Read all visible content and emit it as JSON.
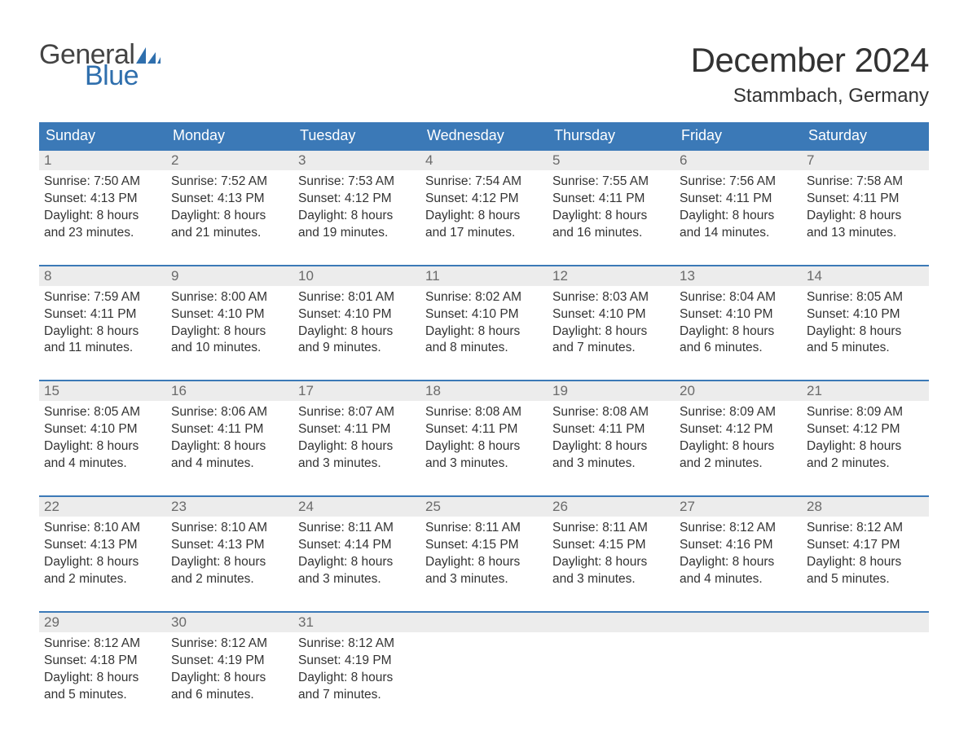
{
  "logo": {
    "text_top": "General",
    "text_bottom": "Blue",
    "top_color": "#444444",
    "bottom_color": "#2f6fad",
    "flag_color": "#2f6fad"
  },
  "title": "December 2024",
  "location": "Stammbach, Germany",
  "colors": {
    "header_bg": "#3b79b7",
    "header_text": "#ffffff",
    "daynum_bg": "#ececec",
    "daynum_text": "#6a6a6a",
    "body_text": "#333333",
    "week_border": "#3b79b7",
    "page_bg": "#ffffff"
  },
  "fonts": {
    "title_size_pt": 32,
    "location_size_pt": 18,
    "weekday_size_pt": 14,
    "daynum_size_pt": 13,
    "body_size_pt": 12
  },
  "weekdays": [
    "Sunday",
    "Monday",
    "Tuesday",
    "Wednesday",
    "Thursday",
    "Friday",
    "Saturday"
  ],
  "weeks": [
    [
      {
        "n": "1",
        "sunrise": "Sunrise: 7:50 AM",
        "sunset": "Sunset: 4:13 PM",
        "d1": "Daylight: 8 hours",
        "d2": "and 23 minutes."
      },
      {
        "n": "2",
        "sunrise": "Sunrise: 7:52 AM",
        "sunset": "Sunset: 4:13 PM",
        "d1": "Daylight: 8 hours",
        "d2": "and 21 minutes."
      },
      {
        "n": "3",
        "sunrise": "Sunrise: 7:53 AM",
        "sunset": "Sunset: 4:12 PM",
        "d1": "Daylight: 8 hours",
        "d2": "and 19 minutes."
      },
      {
        "n": "4",
        "sunrise": "Sunrise: 7:54 AM",
        "sunset": "Sunset: 4:12 PM",
        "d1": "Daylight: 8 hours",
        "d2": "and 17 minutes."
      },
      {
        "n": "5",
        "sunrise": "Sunrise: 7:55 AM",
        "sunset": "Sunset: 4:11 PM",
        "d1": "Daylight: 8 hours",
        "d2": "and 16 minutes."
      },
      {
        "n": "6",
        "sunrise": "Sunrise: 7:56 AM",
        "sunset": "Sunset: 4:11 PM",
        "d1": "Daylight: 8 hours",
        "d2": "and 14 minutes."
      },
      {
        "n": "7",
        "sunrise": "Sunrise: 7:58 AM",
        "sunset": "Sunset: 4:11 PM",
        "d1": "Daylight: 8 hours",
        "d2": "and 13 minutes."
      }
    ],
    [
      {
        "n": "8",
        "sunrise": "Sunrise: 7:59 AM",
        "sunset": "Sunset: 4:11 PM",
        "d1": "Daylight: 8 hours",
        "d2": "and 11 minutes."
      },
      {
        "n": "9",
        "sunrise": "Sunrise: 8:00 AM",
        "sunset": "Sunset: 4:10 PM",
        "d1": "Daylight: 8 hours",
        "d2": "and 10 minutes."
      },
      {
        "n": "10",
        "sunrise": "Sunrise: 8:01 AM",
        "sunset": "Sunset: 4:10 PM",
        "d1": "Daylight: 8 hours",
        "d2": "and 9 minutes."
      },
      {
        "n": "11",
        "sunrise": "Sunrise: 8:02 AM",
        "sunset": "Sunset: 4:10 PM",
        "d1": "Daylight: 8 hours",
        "d2": "and 8 minutes."
      },
      {
        "n": "12",
        "sunrise": "Sunrise: 8:03 AM",
        "sunset": "Sunset: 4:10 PM",
        "d1": "Daylight: 8 hours",
        "d2": "and 7 minutes."
      },
      {
        "n": "13",
        "sunrise": "Sunrise: 8:04 AM",
        "sunset": "Sunset: 4:10 PM",
        "d1": "Daylight: 8 hours",
        "d2": "and 6 minutes."
      },
      {
        "n": "14",
        "sunrise": "Sunrise: 8:05 AM",
        "sunset": "Sunset: 4:10 PM",
        "d1": "Daylight: 8 hours",
        "d2": "and 5 minutes."
      }
    ],
    [
      {
        "n": "15",
        "sunrise": "Sunrise: 8:05 AM",
        "sunset": "Sunset: 4:10 PM",
        "d1": "Daylight: 8 hours",
        "d2": "and 4 minutes."
      },
      {
        "n": "16",
        "sunrise": "Sunrise: 8:06 AM",
        "sunset": "Sunset: 4:11 PM",
        "d1": "Daylight: 8 hours",
        "d2": "and 4 minutes."
      },
      {
        "n": "17",
        "sunrise": "Sunrise: 8:07 AM",
        "sunset": "Sunset: 4:11 PM",
        "d1": "Daylight: 8 hours",
        "d2": "and 3 minutes."
      },
      {
        "n": "18",
        "sunrise": "Sunrise: 8:08 AM",
        "sunset": "Sunset: 4:11 PM",
        "d1": "Daylight: 8 hours",
        "d2": "and 3 minutes."
      },
      {
        "n": "19",
        "sunrise": "Sunrise: 8:08 AM",
        "sunset": "Sunset: 4:11 PM",
        "d1": "Daylight: 8 hours",
        "d2": "and 3 minutes."
      },
      {
        "n": "20",
        "sunrise": "Sunrise: 8:09 AM",
        "sunset": "Sunset: 4:12 PM",
        "d1": "Daylight: 8 hours",
        "d2": "and 2 minutes."
      },
      {
        "n": "21",
        "sunrise": "Sunrise: 8:09 AM",
        "sunset": "Sunset: 4:12 PM",
        "d1": "Daylight: 8 hours",
        "d2": "and 2 minutes."
      }
    ],
    [
      {
        "n": "22",
        "sunrise": "Sunrise: 8:10 AM",
        "sunset": "Sunset: 4:13 PM",
        "d1": "Daylight: 8 hours",
        "d2": "and 2 minutes."
      },
      {
        "n": "23",
        "sunrise": "Sunrise: 8:10 AM",
        "sunset": "Sunset: 4:13 PM",
        "d1": "Daylight: 8 hours",
        "d2": "and 2 minutes."
      },
      {
        "n": "24",
        "sunrise": "Sunrise: 8:11 AM",
        "sunset": "Sunset: 4:14 PM",
        "d1": "Daylight: 8 hours",
        "d2": "and 3 minutes."
      },
      {
        "n": "25",
        "sunrise": "Sunrise: 8:11 AM",
        "sunset": "Sunset: 4:15 PM",
        "d1": "Daylight: 8 hours",
        "d2": "and 3 minutes."
      },
      {
        "n": "26",
        "sunrise": "Sunrise: 8:11 AM",
        "sunset": "Sunset: 4:15 PM",
        "d1": "Daylight: 8 hours",
        "d2": "and 3 minutes."
      },
      {
        "n": "27",
        "sunrise": "Sunrise: 8:12 AM",
        "sunset": "Sunset: 4:16 PM",
        "d1": "Daylight: 8 hours",
        "d2": "and 4 minutes."
      },
      {
        "n": "28",
        "sunrise": "Sunrise: 8:12 AM",
        "sunset": "Sunset: 4:17 PM",
        "d1": "Daylight: 8 hours",
        "d2": "and 5 minutes."
      }
    ],
    [
      {
        "n": "29",
        "sunrise": "Sunrise: 8:12 AM",
        "sunset": "Sunset: 4:18 PM",
        "d1": "Daylight: 8 hours",
        "d2": "and 5 minutes."
      },
      {
        "n": "30",
        "sunrise": "Sunrise: 8:12 AM",
        "sunset": "Sunset: 4:19 PM",
        "d1": "Daylight: 8 hours",
        "d2": "and 6 minutes."
      },
      {
        "n": "31",
        "sunrise": "Sunrise: 8:12 AM",
        "sunset": "Sunset: 4:19 PM",
        "d1": "Daylight: 8 hours",
        "d2": "and 7 minutes."
      },
      {
        "empty": true
      },
      {
        "empty": true
      },
      {
        "empty": true
      },
      {
        "empty": true
      }
    ]
  ]
}
